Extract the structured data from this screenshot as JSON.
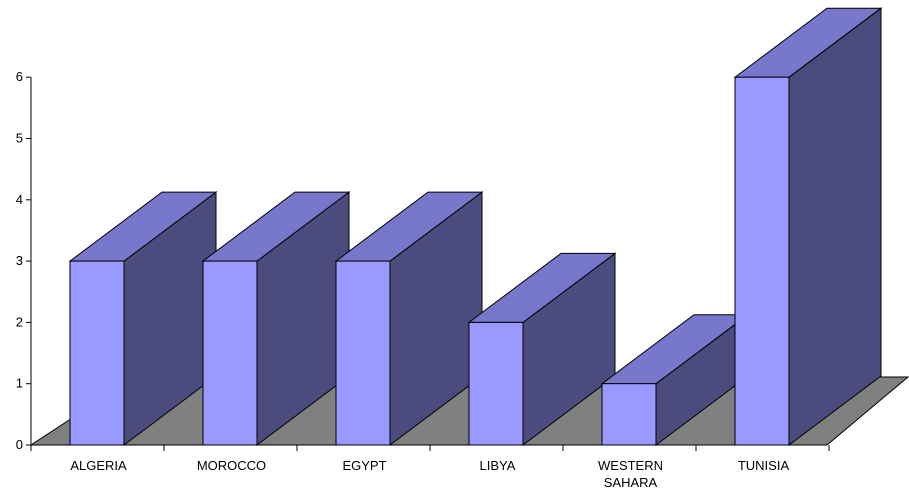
{
  "chart_data": {
    "type": "bar",
    "categories": [
      "ALGERIA",
      "MOROCCO",
      "EGYPT",
      "LIBYA",
      "WESTERN SAHARA",
      "TUNISIA"
    ],
    "category_lines": [
      [
        "ALGERIA"
      ],
      [
        "MOROCCO"
      ],
      [
        "EGYPT"
      ],
      [
        "LIBYA"
      ],
      [
        "WESTERN",
        "SAHARA"
      ],
      [
        "TUNISIA"
      ]
    ],
    "values": [
      3,
      3,
      3,
      2,
      1,
      6
    ],
    "ylim": [
      0,
      6
    ],
    "yticks": [
      "0",
      "1",
      "2",
      "3",
      "4",
      "5",
      "6"
    ],
    "three_d": true,
    "grid": false,
    "legend": "none",
    "colors": {
      "bar_front": "#9999ff",
      "bar_top": "#7777cc",
      "bar_side": "#4b4b7d",
      "floor": "#808080",
      "edge": "#000000"
    }
  }
}
